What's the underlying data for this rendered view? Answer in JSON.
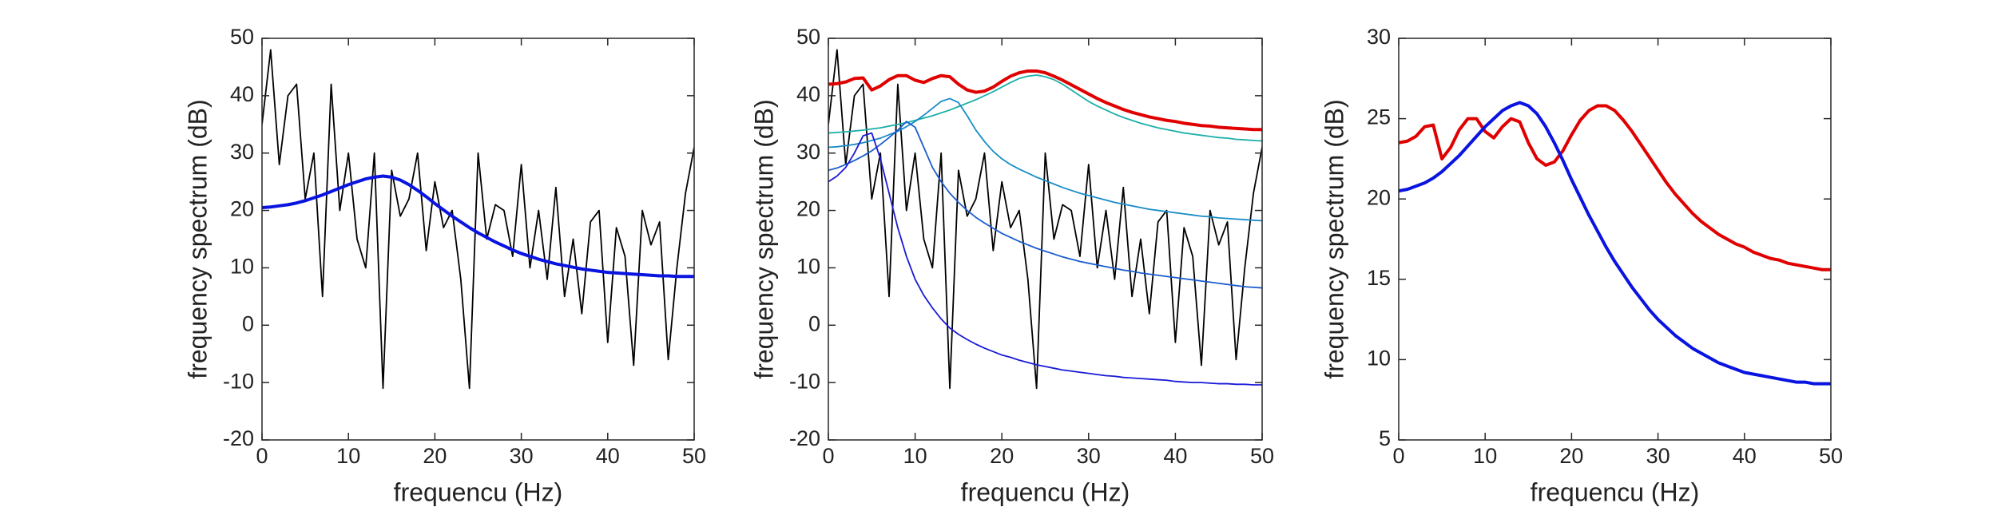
{
  "chart_data": [
    {
      "type": "line",
      "xlabel": "frequencu (Hz)",
      "ylabel": "frequency spectrum (dB)",
      "xlim": [
        0,
        50
      ],
      "ylim": [
        -20,
        50
      ],
      "xticks": [
        0,
        10,
        20,
        30,
        40,
        50
      ],
      "yticks": [
        -20,
        -10,
        0,
        10,
        20,
        30,
        40,
        50
      ],
      "x": [
        0,
        1,
        2,
        3,
        4,
        5,
        6,
        7,
        8,
        9,
        10,
        11,
        12,
        13,
        14,
        15,
        16,
        17,
        18,
        19,
        20,
        21,
        22,
        23,
        24,
        25,
        26,
        27,
        28,
        29,
        30,
        31,
        32,
        33,
        34,
        35,
        36,
        37,
        38,
        39,
        40,
        41,
        42,
        43,
        44,
        45,
        46,
        47,
        48,
        49,
        50
      ],
      "series": [
        {
          "color": "#000000",
          "linewidth": 1.8,
          "values": [
            35,
            48,
            28,
            40,
            42,
            22,
            30,
            5,
            42,
            20,
            30,
            15,
            10,
            30,
            -11,
            27,
            19,
            22,
            30,
            13,
            25,
            17,
            20,
            8,
            -11,
            30,
            15,
            21,
            20,
            12,
            28,
            10,
            20,
            8,
            24,
            5,
            15,
            2,
            18,
            20,
            -3,
            17,
            12,
            -7,
            20,
            14,
            18,
            -6,
            10,
            23,
            31
          ]
        },
        {
          "color": "#0a14e0",
          "linewidth": 4,
          "values": [
            20.5,
            20.6,
            20.8,
            21.0,
            21.3,
            21.7,
            22.2,
            22.7,
            23.3,
            23.9,
            24.5,
            25.0,
            25.5,
            25.8,
            26.0,
            25.8,
            25.3,
            24.5,
            23.5,
            22.4,
            21.2,
            20.1,
            19.0,
            18.0,
            17.0,
            16.1,
            15.3,
            14.5,
            13.8,
            13.1,
            12.5,
            12.0,
            11.5,
            11.1,
            10.7,
            10.4,
            10.1,
            9.8,
            9.6,
            9.4,
            9.2,
            9.1,
            9.0,
            8.9,
            8.8,
            8.7,
            8.6,
            8.6,
            8.5,
            8.5,
            8.5
          ]
        }
      ]
    },
    {
      "type": "line",
      "xlabel": "frequencu (Hz)",
      "ylabel": "frequency spectrum (dB)",
      "xlim": [
        0,
        50
      ],
      "ylim": [
        -20,
        50
      ],
      "xticks": [
        0,
        10,
        20,
        30,
        40,
        50
      ],
      "yticks": [
        -20,
        -10,
        0,
        10,
        20,
        30,
        40,
        50
      ],
      "x": [
        0,
        1,
        2,
        3,
        4,
        5,
        6,
        7,
        8,
        9,
        10,
        11,
        12,
        13,
        14,
        15,
        16,
        17,
        18,
        19,
        20,
        21,
        22,
        23,
        24,
        25,
        26,
        27,
        28,
        29,
        30,
        31,
        32,
        33,
        34,
        35,
        36,
        37,
        38,
        39,
        40,
        41,
        42,
        43,
        44,
        45,
        46,
        47,
        48,
        49,
        50
      ],
      "series": [
        {
          "color": "#000000",
          "linewidth": 1.8,
          "values": [
            35,
            48,
            28,
            40,
            42,
            22,
            30,
            5,
            42,
            20,
            30,
            15,
            10,
            30,
            -11,
            27,
            19,
            22,
            30,
            13,
            25,
            17,
            20,
            8,
            -11,
            30,
            15,
            21,
            20,
            12,
            28,
            10,
            20,
            8,
            24,
            5,
            15,
            2,
            18,
            20,
            -3,
            17,
            12,
            -7,
            20,
            14,
            18,
            -6,
            10,
            23,
            31
          ]
        },
        {
          "color": "#1ab0a8",
          "linewidth": 1.8,
          "values": [
            33.5,
            33.6,
            33.7,
            33.85,
            34.0,
            34.2,
            34.4,
            34.7,
            35.0,
            35.3,
            35.7,
            36.1,
            36.5,
            37.0,
            37.5,
            38.1,
            38.7,
            39.3,
            40.0,
            40.7,
            41.5,
            42.3,
            43.0,
            43.4,
            43.6,
            43.3,
            42.8,
            42.0,
            41.0,
            40.0,
            39.0,
            38.2,
            37.5,
            36.8,
            36.2,
            35.7,
            35.2,
            34.8,
            34.4,
            34.1,
            33.8,
            33.5,
            33.3,
            33.1,
            32.9,
            32.7,
            32.6,
            32.4,
            32.3,
            32.2,
            32.1
          ]
        },
        {
          "color": "#1a8cc8",
          "linewidth": 1.8,
          "values": [
            31.0,
            31.1,
            31.3,
            31.5,
            31.8,
            32.2,
            32.6,
            33.2,
            33.8,
            34.6,
            35.5,
            36.6,
            37.8,
            39.0,
            39.5,
            38.8,
            36.5,
            34.0,
            32.0,
            30.3,
            29.0,
            28.0,
            27.2,
            26.5,
            25.8,
            25.2,
            24.6,
            24.0,
            23.5,
            23.0,
            22.6,
            22.2,
            21.8,
            21.4,
            21.1,
            20.8,
            20.5,
            20.2,
            20.0,
            19.8,
            19.6,
            19.4,
            19.2,
            19.0,
            18.9,
            18.7,
            18.6,
            18.5,
            18.4,
            18.3,
            18.2
          ]
        },
        {
          "color": "#1a5ccc",
          "linewidth": 1.8,
          "values": [
            27.0,
            27.4,
            28.0,
            28.7,
            29.5,
            30.4,
            31.5,
            32.7,
            34.0,
            35.5,
            34.5,
            31.0,
            27.5,
            25.0,
            23.0,
            21.4,
            20.0,
            18.8,
            17.8,
            16.9,
            16.0,
            15.3,
            14.6,
            14.0,
            13.4,
            12.9,
            12.4,
            11.9,
            11.5,
            11.1,
            10.8,
            10.5,
            10.2,
            9.9,
            9.6,
            9.4,
            9.1,
            8.9,
            8.7,
            8.5,
            8.3,
            8.1,
            7.9,
            7.7,
            7.5,
            7.3,
            7.1,
            6.9,
            6.7,
            6.6,
            6.5
          ]
        },
        {
          "color": "#1a1ad8",
          "linewidth": 1.8,
          "values": [
            25.0,
            26.0,
            27.5,
            30.0,
            33.0,
            33.5,
            29.0,
            23.0,
            17.0,
            12.0,
            8.0,
            5.2,
            3.0,
            1.1,
            -0.5,
            -1.6,
            -2.5,
            -3.3,
            -4.0,
            -4.6,
            -5.2,
            -5.6,
            -6.1,
            -6.5,
            -6.9,
            -7.2,
            -7.5,
            -7.8,
            -8.0,
            -8.2,
            -8.4,
            -8.6,
            -8.8,
            -8.9,
            -9.1,
            -9.2,
            -9.3,
            -9.4,
            -9.5,
            -9.6,
            -9.8,
            -9.9,
            -10.0,
            -10.0,
            -10.1,
            -10.2,
            -10.2,
            -10.3,
            -10.3,
            -10.4,
            -10.4
          ]
        },
        {
          "color": "#e00000",
          "linewidth": 4,
          "values": [
            42.0,
            42.1,
            42.4,
            43.0,
            43.1,
            41.0,
            41.7,
            42.8,
            43.5,
            43.5,
            42.7,
            42.3,
            43.0,
            43.5,
            43.3,
            42.0,
            41.0,
            40.6,
            40.8,
            41.5,
            42.5,
            43.4,
            44.0,
            44.3,
            44.3,
            44.0,
            43.4,
            42.7,
            41.9,
            41.1,
            40.3,
            39.5,
            38.8,
            38.2,
            37.6,
            37.1,
            36.7,
            36.3,
            36.0,
            35.7,
            35.5,
            35.2,
            35.0,
            34.8,
            34.7,
            34.5,
            34.4,
            34.3,
            34.2,
            34.1,
            34.1
          ]
        }
      ]
    },
    {
      "type": "line",
      "xlabel": "frequencu (Hz)",
      "ylabel": "frequency spectrum (dB)",
      "xlim": [
        0,
        50
      ],
      "ylim": [
        5,
        30
      ],
      "xticks": [
        0,
        10,
        20,
        30,
        40,
        50
      ],
      "yticks": [
        5,
        10,
        15,
        20,
        25,
        30
      ],
      "x": [
        0,
        1,
        2,
        3,
        4,
        5,
        6,
        7,
        8,
        9,
        10,
        11,
        12,
        13,
        14,
        15,
        16,
        17,
        18,
        19,
        20,
        21,
        22,
        23,
        24,
        25,
        26,
        27,
        28,
        29,
        30,
        31,
        32,
        33,
        34,
        35,
        36,
        37,
        38,
        39,
        40,
        41,
        42,
        43,
        44,
        45,
        46,
        47,
        48,
        49,
        50
      ],
      "series": [
        {
          "color": "#e00000",
          "linewidth": 4,
          "values": [
            23.5,
            23.6,
            23.9,
            24.5,
            24.6,
            22.5,
            23.2,
            24.3,
            25.0,
            25.0,
            24.2,
            23.8,
            24.5,
            25.0,
            24.8,
            23.5,
            22.5,
            22.1,
            22.3,
            23.0,
            24.0,
            24.9,
            25.5,
            25.8,
            25.8,
            25.5,
            24.9,
            24.2,
            23.4,
            22.6,
            21.8,
            21.0,
            20.3,
            19.7,
            19.1,
            18.6,
            18.2,
            17.8,
            17.5,
            17.2,
            17.0,
            16.7,
            16.5,
            16.3,
            16.2,
            16.0,
            15.9,
            15.8,
            15.7,
            15.6,
            15.6
          ]
        },
        {
          "color": "#0a14e0",
          "linewidth": 4,
          "values": [
            20.5,
            20.6,
            20.8,
            21.0,
            21.3,
            21.7,
            22.2,
            22.7,
            23.3,
            23.9,
            24.5,
            25.0,
            25.5,
            25.8,
            26.0,
            25.8,
            25.3,
            24.5,
            23.5,
            22.4,
            21.2,
            20.1,
            19.0,
            18.0,
            17.0,
            16.1,
            15.3,
            14.5,
            13.8,
            13.1,
            12.5,
            12.0,
            11.5,
            11.1,
            10.7,
            10.4,
            10.1,
            9.8,
            9.6,
            9.4,
            9.2,
            9.1,
            9.0,
            8.9,
            8.8,
            8.7,
            8.6,
            8.6,
            8.5,
            8.5,
            8.5
          ]
        }
      ]
    }
  ]
}
